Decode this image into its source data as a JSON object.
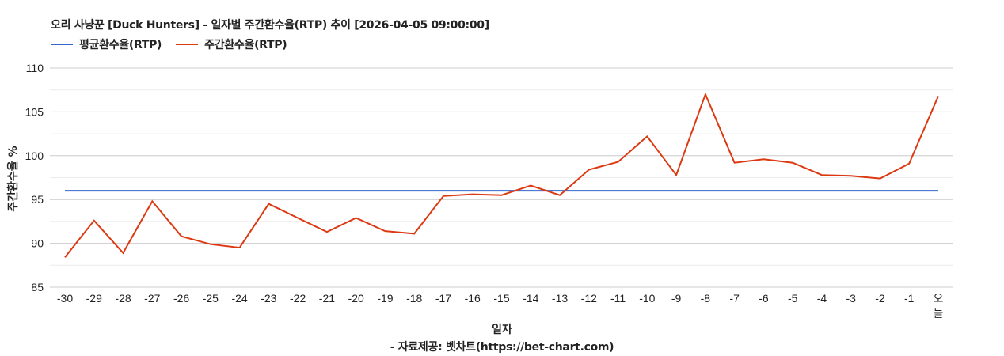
{
  "header": {
    "title": "오리 사냥꾼 [Duck Hunters] - 일자별 주간환수율(RTP) 추이 [2026-04-05 09:00:00]"
  },
  "legend": [
    {
      "label": "평균환수율(RTP)",
      "color": "#3366cc"
    },
    {
      "label": "주간환수율(RTP)",
      "color": "#dc3912"
    }
  ],
  "axes": {
    "ylabel": "주간환수율 %",
    "xlabel": "일자",
    "source": "- 자료제공: 벳차트(https://bet-chart.com)"
  },
  "chart_data": {
    "type": "line",
    "title": "오리 사냥꾼 [Duck Hunters] - 일자별 주간환수율(RTP) 추이 [2026-04-05 09:00:00]",
    "xlabel": "일자",
    "ylabel": "주간환수율 %",
    "ylim": [
      85,
      110
    ],
    "yticks": [
      85,
      90,
      95,
      100,
      105,
      110
    ],
    "grid": true,
    "legend_position": "top-left",
    "categories": [
      "-30",
      "-29",
      "-28",
      "-27",
      "-26",
      "-25",
      "-24",
      "-23",
      "-22",
      "-21",
      "-20",
      "-19",
      "-18",
      "-17",
      "-16",
      "-15",
      "-14",
      "-13",
      "-12",
      "-11",
      "-10",
      "-9",
      "-8",
      "-7",
      "-6",
      "-5",
      "-4",
      "-3",
      "-2",
      "-1",
      "오늘"
    ],
    "series": [
      {
        "name": "평균환수율(RTP)",
        "color": "#3366cc",
        "values": [
          96,
          96,
          96,
          96,
          96,
          96,
          96,
          96,
          96,
          96,
          96,
          96,
          96,
          96,
          96,
          96,
          96,
          96,
          96,
          96,
          96,
          96,
          96,
          96,
          96,
          96,
          96,
          96,
          96,
          96,
          96
        ]
      },
      {
        "name": "주간환수율(RTP)",
        "color": "#dc3912",
        "values": [
          88.4,
          92.6,
          88.9,
          94.8,
          90.8,
          89.9,
          89.5,
          94.5,
          92.9,
          91.3,
          92.9,
          91.4,
          91.1,
          95.4,
          95.6,
          95.5,
          96.6,
          95.5,
          98.4,
          99.3,
          102.2,
          97.8,
          107.0,
          99.2,
          99.6,
          99.2,
          97.8,
          97.7,
          97.4,
          99.1,
          106.8
        ]
      }
    ]
  }
}
